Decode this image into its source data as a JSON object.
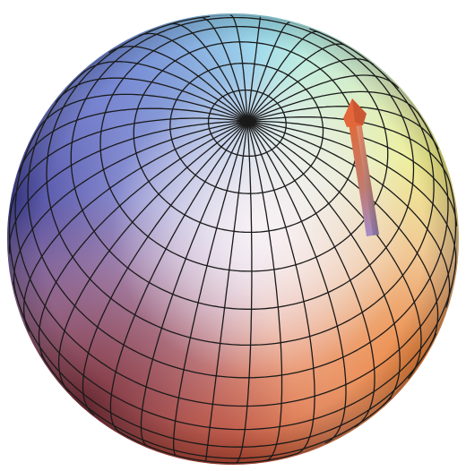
{
  "figure": {
    "subject": "sphere",
    "overlay": "tangent arrow",
    "background_color": "#ffffff",
    "grid_line_color": "#1a1a1a",
    "grid": {
      "latitude_bands": 18,
      "longitude_segments": 40
    },
    "arrow": {
      "color_top": "#e06a3a",
      "color_bottom": "#a58cc8"
    },
    "surface_colors": {
      "top": "#9ce9ef",
      "left": "#4a3f9e",
      "right": "#f2f28a",
      "bottom": "#d8552e",
      "highlight": "#fbf4f6"
    }
  }
}
